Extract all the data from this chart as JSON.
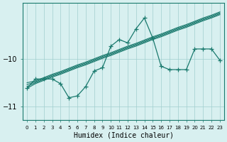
{
  "x": [
    0,
    1,
    2,
    3,
    4,
    5,
    6,
    7,
    8,
    9,
    10,
    11,
    12,
    13,
    14,
    15,
    16,
    17,
    18,
    19,
    20,
    21,
    22,
    23
  ],
  "main_line": [
    -10.62,
    -10.42,
    -10.42,
    -10.42,
    -10.52,
    -10.82,
    -10.78,
    -10.58,
    -10.25,
    -10.18,
    -9.72,
    -9.58,
    -9.65,
    -9.35,
    -9.12,
    -9.55,
    -10.15,
    -10.22,
    -10.22,
    -10.22,
    -9.78,
    -9.78,
    -9.78,
    -10.02
  ],
  "reg1": [
    -10.62,
    -10.52,
    -10.45,
    -10.38,
    -10.32,
    -10.25,
    -10.18,
    -10.12,
    -10.05,
    -9.98,
    -9.92,
    -9.85,
    -9.78,
    -9.72,
    -9.65,
    -9.58,
    -9.52,
    -9.45,
    -9.38,
    -9.32,
    -9.25,
    -9.18,
    -9.12,
    -9.05
  ],
  "reg2": [
    -10.58,
    -10.5,
    -10.43,
    -10.36,
    -10.3,
    -10.23,
    -10.16,
    -10.1,
    -10.03,
    -9.96,
    -9.9,
    -9.83,
    -9.76,
    -9.7,
    -9.63,
    -9.56,
    -9.5,
    -9.43,
    -9.36,
    -9.3,
    -9.23,
    -9.16,
    -9.1,
    -9.03
  ],
  "reg3": [
    -10.54,
    -10.48,
    -10.41,
    -10.34,
    -10.28,
    -10.21,
    -10.14,
    -10.08,
    -10.01,
    -9.94,
    -9.88,
    -9.81,
    -9.74,
    -9.68,
    -9.61,
    -9.54,
    -9.48,
    -9.41,
    -9.34,
    -9.28,
    -9.21,
    -9.14,
    -9.08,
    -9.01
  ],
  "reg4": [
    -10.5,
    -10.46,
    -10.39,
    -10.32,
    -10.26,
    -10.19,
    -10.12,
    -10.06,
    -9.99,
    -9.92,
    -9.86,
    -9.79,
    -9.72,
    -9.66,
    -9.59,
    -9.52,
    -9.46,
    -9.39,
    -9.32,
    -9.26,
    -9.19,
    -9.12,
    -9.06,
    -8.99
  ],
  "line_color": "#1a7a6e",
  "bg_color": "#d8f0f0",
  "grid_color": "#a0cece",
  "xlabel": "Humidex (Indice chaleur)",
  "yticks": [
    -11,
    -10
  ],
  "ylim": [
    -11.3,
    -8.8
  ],
  "xlim": [
    -0.5,
    23.5
  ]
}
